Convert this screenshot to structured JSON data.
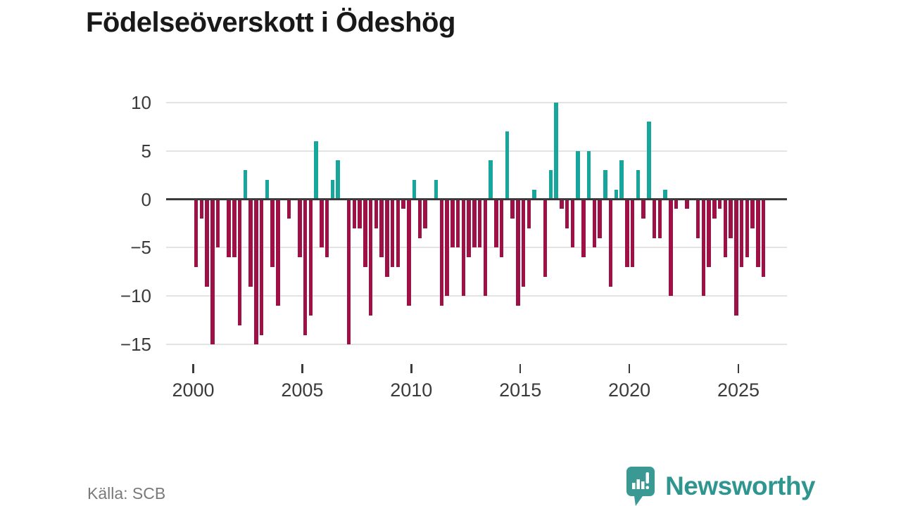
{
  "title": "Födelseöverskott i Ödeshög",
  "source": "Källa: SCB",
  "branding": {
    "name": "Newsworthy"
  },
  "chart_data": {
    "type": "bar",
    "title": "Födelseöverskott i Ödeshög",
    "xlabel": "",
    "ylabel": "",
    "x_tick_labels": [
      "2000",
      "2005",
      "2010",
      "2015",
      "2020",
      "2025"
    ],
    "y_ticks": [
      10,
      5,
      0,
      -5,
      -10,
      -15
    ],
    "y_tick_labels": [
      "10",
      "5",
      "0",
      "−5",
      "−10",
      "−15"
    ],
    "ylim": [
      -17,
      11.5
    ],
    "grid": "horizontal",
    "legend": "none",
    "period": "quarterly",
    "points": [
      [
        "2000Q1",
        -7
      ],
      [
        "2000Q2",
        -2
      ],
      [
        "2000Q3",
        -9
      ],
      [
        "2000Q4",
        -15
      ],
      [
        "2001Q1",
        -5
      ],
      [
        "2001Q2",
        0
      ],
      [
        "2001Q3",
        -6
      ],
      [
        "2001Q4",
        -6
      ],
      [
        "2002Q1",
        -13
      ],
      [
        "2002Q2",
        3
      ],
      [
        "2002Q3",
        -9
      ],
      [
        "2002Q4",
        -15
      ],
      [
        "2003Q1",
        -14
      ],
      [
        "2003Q2",
        2
      ],
      [
        "2003Q3",
        -7
      ],
      [
        "2003Q4",
        -11
      ],
      [
        "2004Q1",
        0
      ],
      [
        "2004Q2",
        -2
      ],
      [
        "2004Q3",
        0
      ],
      [
        "2004Q4",
        -6
      ],
      [
        "2005Q1",
        -14
      ],
      [
        "2005Q2",
        -12
      ],
      [
        "2005Q3",
        6
      ],
      [
        "2005Q4",
        -5
      ],
      [
        "2006Q1",
        -6
      ],
      [
        "2006Q2",
        2
      ],
      [
        "2006Q3",
        4
      ],
      [
        "2006Q4",
        0
      ],
      [
        "2007Q1",
        -15
      ],
      [
        "2007Q2",
        -3
      ],
      [
        "2007Q3",
        -3
      ],
      [
        "2007Q4",
        -7
      ],
      [
        "2008Q1",
        -12
      ],
      [
        "2008Q2",
        -3
      ],
      [
        "2008Q3",
        -6
      ],
      [
        "2008Q4",
        -8
      ],
      [
        "2009Q1",
        -7
      ],
      [
        "2009Q2",
        -7
      ],
      [
        "2009Q3",
        -1
      ],
      [
        "2009Q4",
        -11
      ],
      [
        "2010Q1",
        2
      ],
      [
        "2010Q2",
        -4
      ],
      [
        "2010Q3",
        -3
      ],
      [
        "2010Q4",
        0
      ],
      [
        "2011Q1",
        2
      ],
      [
        "2011Q2",
        -11
      ],
      [
        "2011Q3",
        -10
      ],
      [
        "2011Q4",
        -5
      ],
      [
        "2012Q1",
        -5
      ],
      [
        "2012Q2",
        -10
      ],
      [
        "2012Q3",
        -6
      ],
      [
        "2012Q4",
        -5
      ],
      [
        "2013Q1",
        -5
      ],
      [
        "2013Q2",
        -10
      ],
      [
        "2013Q3",
        4
      ],
      [
        "2013Q4",
        -5
      ],
      [
        "2014Q1",
        -6
      ],
      [
        "2014Q2",
        7
      ],
      [
        "2014Q3",
        -2
      ],
      [
        "2014Q4",
        -11
      ],
      [
        "2015Q1",
        -9
      ],
      [
        "2015Q2",
        -3
      ],
      [
        "2015Q3",
        1
      ],
      [
        "2015Q4",
        0
      ],
      [
        "2016Q1",
        -8
      ],
      [
        "2016Q2",
        3
      ],
      [
        "2016Q3",
        10
      ],
      [
        "2016Q4",
        -1
      ],
      [
        "2017Q1",
        -3
      ],
      [
        "2017Q2",
        -5
      ],
      [
        "2017Q3",
        5
      ],
      [
        "2017Q4",
        -6
      ],
      [
        "2018Q1",
        5
      ],
      [
        "2018Q2",
        -5
      ],
      [
        "2018Q3",
        -4
      ],
      [
        "2018Q4",
        3
      ],
      [
        "2019Q1",
        -9
      ],
      [
        "2019Q2",
        1
      ],
      [
        "2019Q3",
        4
      ],
      [
        "2019Q4",
        -7
      ],
      [
        "2020Q1",
        -7
      ],
      [
        "2020Q2",
        3
      ],
      [
        "2020Q3",
        -2
      ],
      [
        "2020Q4",
        8
      ],
      [
        "2021Q1",
        -4
      ],
      [
        "2021Q2",
        -4
      ],
      [
        "2021Q3",
        1
      ],
      [
        "2021Q4",
        -10
      ],
      [
        "2022Q1",
        -1
      ],
      [
        "2022Q2",
        0
      ],
      [
        "2022Q3",
        -1
      ],
      [
        "2022Q4",
        0
      ],
      [
        "2023Q1",
        -4
      ],
      [
        "2023Q2",
        -10
      ],
      [
        "2023Q3",
        -7
      ],
      [
        "2023Q4",
        -2
      ],
      [
        "2024Q1",
        -1
      ],
      [
        "2024Q2",
        -6
      ],
      [
        "2024Q3",
        -4
      ],
      [
        "2024Q4",
        -12
      ],
      [
        "2025Q1",
        -7
      ],
      [
        "2025Q2",
        -6
      ],
      [
        "2025Q3",
        -3
      ],
      [
        "2025Q4",
        -7
      ],
      [
        "2026Q1",
        -8
      ]
    ],
    "colors": {
      "positive": "#17A69B",
      "negative": "#9E1147",
      "axis": "#3A3A3A",
      "grid": "#E3E3E3",
      "tick_text": "#3B3B3B",
      "title_text": "#191919",
      "source_text": "#7A7A7A",
      "brand": "#2F968F"
    }
  }
}
